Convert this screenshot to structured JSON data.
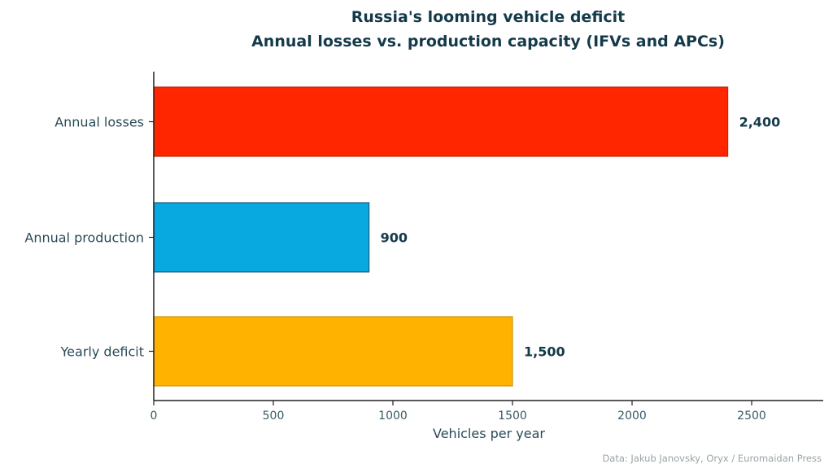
{
  "chart_data": {
    "type": "bar",
    "orientation": "horizontal",
    "title": "Russia's looming vehicle deficit",
    "subtitle": "Annual losses vs. production capacity (IFVs and APCs)",
    "categories": [
      "Annual losses",
      "Annual production",
      "Yearly deficit"
    ],
    "values": [
      2400,
      900,
      1500
    ],
    "data_labels": [
      "2,400",
      "900",
      "1,500"
    ],
    "colors": [
      "#FF2600",
      "#08A8E0",
      "#FFB300"
    ],
    "xlabel": "Vehicles per year",
    "ylabel": "",
    "xlim": [
      0,
      2800
    ],
    "xticks": [
      "0",
      "500",
      "1000",
      "1500",
      "2000",
      "2500"
    ],
    "grid": false,
    "source": "Data: Jakub Janovsky, Oryx / Euromaidan Press"
  }
}
